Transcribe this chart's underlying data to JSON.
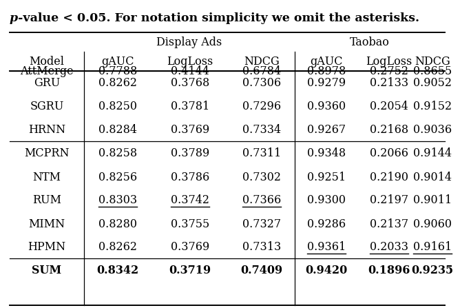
{
  "title_italic": "p",
  "title_rest": "-value < 0.05. For notation simplicity we omit the asterisks.",
  "header1_left": "Display Ads",
  "header1_right": "Taobao",
  "header2": [
    "Model",
    "gAUC",
    "LogLoss",
    "NDCG",
    "gAUC",
    "LogLoss",
    "NDCG"
  ],
  "rows": [
    [
      "AttMerge",
      "0.7788",
      "0.4144",
      "0.6784",
      "0.8978",
      "0.2752",
      "0.8655"
    ],
    [
      "GRU",
      "0.8262",
      "0.3768",
      "0.7306",
      "0.9279",
      "0.2133",
      "0.9052"
    ],
    [
      "SGRU",
      "0.8250",
      "0.3781",
      "0.7296",
      "0.9360",
      "0.2054",
      "0.9152"
    ],
    [
      "HRNN",
      "0.8284",
      "0.3769",
      "0.7334",
      "0.9267",
      "0.2168",
      "0.9036"
    ],
    [
      "MCPRN",
      "0.8258",
      "0.3789",
      "0.7311",
      "0.9348",
      "0.2066",
      "0.9144"
    ],
    [
      "NTM",
      "0.8256",
      "0.3786",
      "0.7302",
      "0.9251",
      "0.2190",
      "0.9014"
    ],
    [
      "RUM",
      "0.8303",
      "0.3742",
      "0.7366",
      "0.9300",
      "0.2197",
      "0.9011"
    ],
    [
      "MIMN",
      "0.8280",
      "0.3755",
      "0.7327",
      "0.9286",
      "0.2137",
      "0.9060"
    ],
    [
      "HPMN",
      "0.8262",
      "0.3769",
      "0.7313",
      "0.9361",
      "0.2033",
      "0.9161"
    ],
    [
      "SUM",
      "0.8342",
      "0.3719",
      "0.7409",
      "0.9420",
      "0.1896",
      "0.9235"
    ]
  ],
  "underlined": [
    [
      6,
      1
    ],
    [
      6,
      2
    ],
    [
      6,
      3
    ],
    [
      8,
      4
    ],
    [
      8,
      5
    ],
    [
      8,
      6
    ]
  ],
  "bold_rows": [
    9
  ],
  "group_separators_after_data_row": [
    0,
    3,
    8
  ],
  "background_color": "#ffffff",
  "text_color": "#000000",
  "fontsize": 11.5,
  "title_fontsize": 12.5
}
